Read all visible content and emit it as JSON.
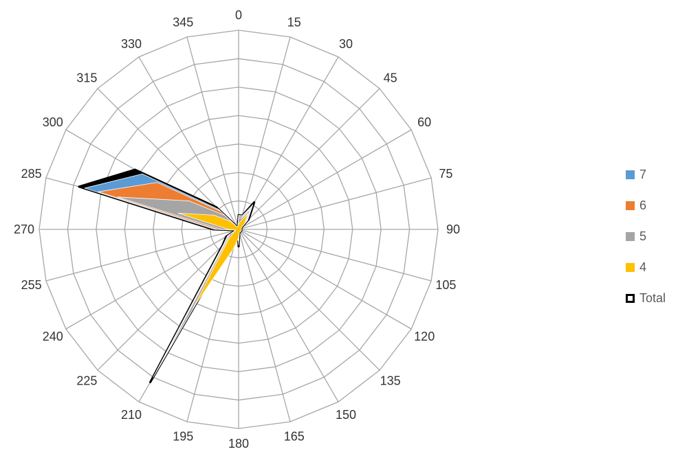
{
  "chart_data": {
    "type": "radar",
    "title": "",
    "categories": [
      "0",
      "15",
      "30",
      "45",
      "60",
      "75",
      "90",
      "105",
      "120",
      "135",
      "150",
      "165",
      "180",
      "195",
      "210",
      "225",
      "240",
      "255",
      "270",
      "285",
      "300",
      "315",
      "330",
      "345"
    ],
    "rmax": 7,
    "grid": true,
    "legend_position": "right",
    "series": [
      {
        "name": "Total",
        "color": "#000000",
        "values": [
          0.5,
          0.5,
          1.1,
          0.5,
          0.1,
          0.1,
          0.1,
          0.1,
          0.1,
          0.1,
          0.1,
          0.1,
          0.6,
          0.1,
          6.2,
          0.8,
          0.5,
          0.1,
          0.9,
          5.8,
          4.2,
          1.1,
          0.1,
          0.1
        ]
      },
      {
        "name": "7",
        "color": "#5B9BD5",
        "values": [
          0.5,
          0.5,
          1.0,
          0.45,
          0.1,
          0.1,
          0.1,
          0.1,
          0.1,
          0.1,
          0.1,
          0.1,
          0.55,
          0.1,
          6.0,
          0.75,
          0.45,
          0.1,
          0.85,
          5.6,
          3.9,
          1.0,
          0.1,
          0.1
        ]
      },
      {
        "name": "6",
        "color": "#ED7D31",
        "values": [
          0.45,
          0.45,
          0.9,
          0.4,
          0.1,
          0.1,
          0.1,
          0.1,
          0.1,
          0.1,
          0.1,
          0.1,
          0.5,
          0.1,
          5.8,
          0.7,
          0.4,
          0.1,
          0.75,
          5.1,
          3.3,
          0.9,
          0.1,
          0.1
        ]
      },
      {
        "name": "5",
        "color": "#A5A5A5",
        "values": [
          0.4,
          0.4,
          0.8,
          0.35,
          0.1,
          0.1,
          0.1,
          0.1,
          0.1,
          0.1,
          0.1,
          0.1,
          0.4,
          0.1,
          5.3,
          0.6,
          0.35,
          0.1,
          0.6,
          4.4,
          2.0,
          0.7,
          0.1,
          0.1
        ]
      },
      {
        "name": "4",
        "color": "#FFC000",
        "values": [
          0.2,
          0.3,
          0.65,
          0.3,
          0.1,
          0.1,
          0.1,
          0.1,
          0.1,
          0.1,
          0.1,
          0.1,
          0.3,
          0.7,
          3.2,
          0.5,
          0.2,
          0.1,
          0.35,
          2.2,
          1.0,
          0.4,
          0.1,
          0.1
        ]
      }
    ]
  }
}
